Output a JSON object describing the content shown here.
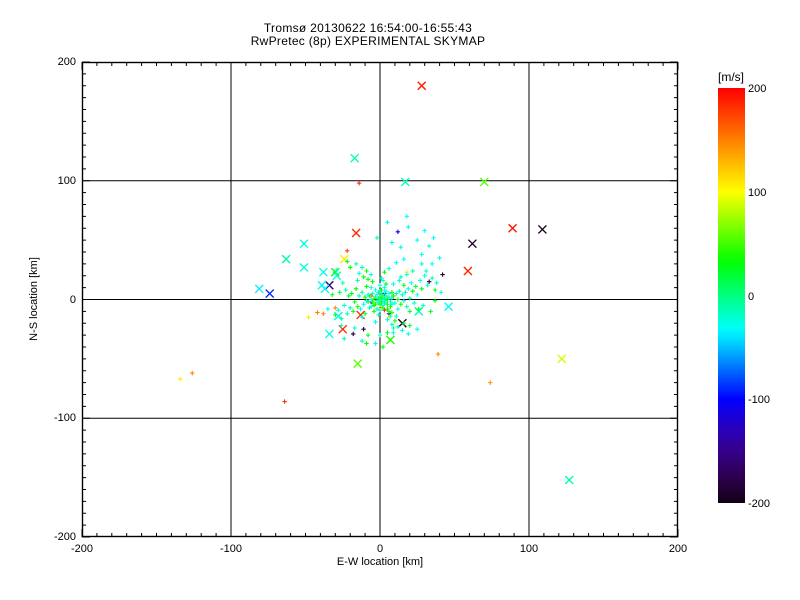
{
  "title": {
    "line1": "Tromsø 20130622 16:54:00-16:55:43",
    "line2": "RwPretec (8p) EXPERIMENTAL SKYMAP"
  },
  "axes": {
    "xlabel": "E-W location [km]",
    "ylabel": "N-S location [km]",
    "xmin": -200,
    "xmax": 200,
    "ymin": -200,
    "ymax": 200,
    "xticks": [
      -200,
      -100,
      0,
      100,
      200
    ],
    "yticks": [
      200,
      100,
      0,
      -100,
      -200
    ],
    "minor_step": 10,
    "grid_lines": [
      -100,
      0,
      100
    ],
    "frame_color": "#000000"
  },
  "colorbar": {
    "unit": "[m/s]",
    "min": -200,
    "max": 200,
    "ticks": [
      200,
      100,
      0,
      -100,
      -200
    ],
    "scale_colors": {
      "200": "#ff0000",
      "100": "#ffff00",
      "0": "#00ff80",
      "-100": "#0000ff",
      "-200": "#000000"
    }
  },
  "chart_data": {
    "type": "scatter",
    "title": "RwPretec (8p) EXPERIMENTAL SKYMAP",
    "xlabel": "E-W location [km]",
    "ylabel": "N-S location [km]",
    "xlim": [
      -200,
      200
    ],
    "ylim": [
      -200,
      200
    ],
    "value_unit": "m/s",
    "value_range": [
      -200,
      200
    ],
    "colormap": "rainbow: +200 red, +100 yellow, 0 spring-green, -100 blue, -200 black",
    "marker_types": {
      "x": "large cross marker",
      "+": "small plus marker"
    },
    "points": [
      [
        28,
        180,
        190,
        "x"
      ],
      [
        -17,
        119,
        -12,
        "x"
      ],
      [
        17,
        99,
        -14,
        "x"
      ],
      [
        70,
        99,
        55,
        "x"
      ],
      [
        -14,
        98,
        185,
        "+"
      ],
      [
        89,
        60,
        192,
        "x"
      ],
      [
        109,
        59,
        -195,
        "x"
      ],
      [
        62,
        47,
        -190,
        "x"
      ],
      [
        59,
        24,
        186,
        "x"
      ],
      [
        42,
        21,
        -186,
        "+"
      ],
      [
        33,
        15,
        -182,
        "+"
      ],
      [
        46,
        -6,
        -32,
        "x"
      ],
      [
        -51,
        47,
        -24,
        "x"
      ],
      [
        -63,
        34,
        -10,
        "x"
      ],
      [
        -51,
        27,
        -22,
        "x"
      ],
      [
        -81,
        9,
        -38,
        "x"
      ],
      [
        -74,
        5,
        -92,
        "x"
      ],
      [
        -16,
        56,
        184,
        "x"
      ],
      [
        -22,
        41,
        172,
        "+"
      ],
      [
        -24,
        34,
        108,
        "x"
      ],
      [
        -38,
        23,
        -26,
        "x"
      ],
      [
        -29,
        20,
        -30,
        "x"
      ],
      [
        -30,
        23,
        32,
        "x"
      ],
      [
        -34,
        12,
        -162,
        "x"
      ],
      [
        -39,
        12,
        -30,
        "x"
      ],
      [
        -37,
        9,
        -36,
        "x"
      ],
      [
        -34,
        -29,
        -28,
        "x"
      ],
      [
        -25,
        -25,
        184,
        "x"
      ],
      [
        15,
        -20,
        -190,
        "x"
      ],
      [
        26,
        -10,
        -14,
        "x"
      ],
      [
        7,
        -34,
        40,
        "x"
      ],
      [
        -15,
        -54,
        58,
        "x"
      ],
      [
        39,
        -46,
        148,
        "+"
      ],
      [
        74,
        -70,
        142,
        "+"
      ],
      [
        122,
        -50,
        88,
        "x"
      ],
      [
        127,
        -152,
        -12,
        "x"
      ],
      [
        -126,
        -62,
        150,
        "+"
      ],
      [
        -134,
        -67,
        108,
        "+"
      ],
      [
        -64,
        -86,
        184,
        "+"
      ],
      [
        12,
        57,
        -118,
        "+"
      ],
      [
        -11,
        -25,
        -184,
        "+"
      ],
      [
        -42,
        -11,
        148,
        "+"
      ],
      [
        -30,
        -7,
        144,
        "+"
      ],
      [
        -48,
        -15,
        106,
        "+"
      ],
      [
        -28,
        -14,
        -24,
        "x"
      ],
      [
        -13,
        -13,
        184,
        "x"
      ],
      [
        -18,
        -29,
        -186,
        "+"
      ],
      [
        6,
        -12,
        -156,
        "+"
      ],
      [
        3,
        5,
        -112,
        "+"
      ],
      [
        -6,
        -2,
        -122,
        "+"
      ],
      [
        -6,
        3,
        182,
        "+"
      ],
      [
        3,
        -9,
        178,
        "+"
      ],
      [
        18,
        23,
        104,
        "+"
      ],
      [
        1,
        -6,
        100,
        "+"
      ],
      [
        8,
        2,
        108,
        "+"
      ],
      [
        -4,
        -3,
        102,
        "+"
      ],
      [
        6,
        -15,
        104,
        "+"
      ],
      [
        37,
        -1,
        28,
        "+"
      ],
      [
        5,
        65,
        -30,
        "+"
      ],
      [
        18,
        70,
        -34,
        "+"
      ],
      [
        19,
        61,
        -28,
        "+"
      ],
      [
        30,
        58,
        -32,
        "+"
      ],
      [
        25,
        50,
        -30,
        "+"
      ],
      [
        33,
        45,
        -26,
        "+"
      ],
      [
        36,
        52,
        -30,
        "+"
      ],
      [
        8,
        48,
        -22,
        "+"
      ],
      [
        -2,
        52,
        -18,
        "+"
      ],
      [
        14,
        44,
        -24,
        "+"
      ],
      [
        28,
        38,
        -28,
        "+"
      ],
      [
        35,
        30,
        -30,
        "+"
      ],
      [
        40,
        35,
        -26,
        "+"
      ],
      [
        31,
        24,
        -22,
        "+"
      ],
      [
        38,
        14,
        -20,
        "+"
      ],
      [
        41,
        6,
        -24,
        "+"
      ],
      [
        0,
        0,
        -8,
        "+"
      ],
      [
        1,
        1,
        30,
        "+"
      ],
      [
        -1,
        1,
        -12,
        "+"
      ],
      [
        2,
        0,
        -20,
        "+"
      ],
      [
        0,
        2,
        45,
        "+"
      ],
      [
        -2,
        -1,
        -10,
        "+"
      ],
      [
        1,
        -2,
        25,
        "+"
      ],
      [
        -1,
        -3,
        -25,
        "+"
      ],
      [
        3,
        1,
        -8,
        "+"
      ],
      [
        2,
        3,
        38,
        "+"
      ],
      [
        -3,
        2,
        -15,
        "+"
      ],
      [
        0,
        -4,
        20,
        "+"
      ],
      [
        4,
        -1,
        -28,
        "+"
      ],
      [
        -4,
        1,
        50,
        "+"
      ],
      [
        3,
        -3,
        -12,
        "+"
      ],
      [
        -2,
        4,
        -22,
        "+"
      ],
      [
        5,
        0,
        35,
        "+"
      ],
      [
        1,
        4,
        -18,
        "+"
      ],
      [
        -5,
        -2,
        28,
        "+"
      ],
      [
        4,
        3,
        -10,
        "+"
      ],
      [
        2,
        -5,
        -30,
        "+"
      ],
      [
        -3,
        -4,
        42,
        "+"
      ],
      [
        6,
        2,
        -14,
        "+"
      ],
      [
        -6,
        0,
        -26,
        "+"
      ],
      [
        5,
        -4,
        22,
        "+"
      ],
      [
        -1,
        6,
        -8,
        "+"
      ],
      [
        3,
        6,
        -35,
        "+"
      ],
      [
        -4,
        -5,
        30,
        "+"
      ],
      [
        7,
        -2,
        -18,
        "+"
      ],
      [
        0,
        7,
        -12,
        "+"
      ],
      [
        -7,
        3,
        48,
        "+"
      ],
      [
        6,
        5,
        -25,
        "+"
      ],
      [
        2,
        -7,
        36,
        "+"
      ],
      [
        -5,
        5,
        -15,
        "+"
      ],
      [
        8,
        1,
        -30,
        "+"
      ],
      [
        -8,
        -2,
        25,
        "+"
      ],
      [
        4,
        7,
        -20,
        "+"
      ],
      [
        -2,
        -8,
        -10,
        "+"
      ],
      [
        7,
        -6,
        40,
        "+"
      ],
      [
        -6,
        -6,
        -28,
        "+"
      ],
      [
        1,
        8,
        32,
        "+"
      ],
      [
        8,
        -4,
        -16,
        "+"
      ],
      [
        -8,
        4,
        -24,
        "+"
      ],
      [
        5,
        -8,
        28,
        "+"
      ],
      [
        -3,
        8,
        -32,
        "+"
      ],
      [
        8,
        6,
        20,
        "+"
      ],
      [
        -7,
        -7,
        -14,
        "+"
      ],
      [
        0,
        -9,
        -26,
        "+"
      ],
      [
        9,
        3,
        34,
        "+"
      ],
      [
        -9,
        -1,
        -18,
        "+"
      ],
      [
        10,
        -3,
        -22,
        "+"
      ],
      [
        -10,
        2,
        30,
        "+"
      ],
      [
        3,
        10,
        -28,
        "+"
      ],
      [
        -4,
        -10,
        38,
        "+"
      ],
      [
        11,
        5,
        -12,
        "+"
      ],
      [
        -11,
        -4,
        -30,
        "+"
      ],
      [
        6,
        -10,
        24,
        "+"
      ],
      [
        -6,
        10,
        -18,
        "+"
      ],
      [
        12,
        0,
        28,
        "+"
      ],
      [
        0,
        12,
        -24,
        "+"
      ],
      [
        -12,
        6,
        -10,
        "+"
      ],
      [
        8,
        -11,
        44,
        "+"
      ],
      [
        12,
        -8,
        -26,
        "+"
      ],
      [
        -9,
        11,
        32,
        "+"
      ],
      [
        13,
        7,
        -16,
        "+"
      ],
      [
        -13,
        -8,
        -28,
        "+"
      ],
      [
        4,
        13,
        26,
        "+"
      ],
      [
        -1,
        -13,
        -20,
        "+"
      ],
      [
        14,
        -4,
        36,
        "+"
      ],
      [
        -14,
        3,
        -12,
        "+"
      ],
      [
        9,
        13,
        -30,
        "+"
      ],
      [
        -10,
        -12,
        22,
        "+"
      ],
      [
        15,
        4,
        -18,
        "+"
      ],
      [
        -15,
        -6,
        40,
        "+"
      ],
      [
        7,
        -14,
        -24,
        "+"
      ],
      [
        -5,
        15,
        28,
        "+"
      ],
      [
        16,
        -1,
        -14,
        "+"
      ],
      [
        2,
        16,
        -28,
        "+"
      ],
      [
        -16,
        9,
        34,
        "+"
      ],
      [
        11,
        -14,
        -20,
        "+"
      ],
      [
        16,
        12,
        24,
        "+"
      ],
      [
        -12,
        -15,
        -32,
        "+"
      ],
      [
        17,
        6,
        -10,
        "+"
      ],
      [
        -17,
        -2,
        26,
        "+"
      ],
      [
        5,
        -17,
        -26,
        "+"
      ],
      [
        -8,
        17,
        38,
        "+"
      ],
      [
        18,
        -6,
        -18,
        "+"
      ],
      [
        13,
        16,
        -24,
        "+"
      ],
      [
        -18,
        -10,
        30,
        "+"
      ],
      [
        1,
        18,
        -14,
        "+"
      ],
      [
        19,
        9,
        -28,
        "+"
      ],
      [
        -19,
        5,
        22,
        "+"
      ],
      [
        10,
        -18,
        36,
        "+"
      ],
      [
        -15,
        16,
        -20,
        "+"
      ],
      [
        20,
        1,
        -12,
        "+"
      ],
      [
        -3,
        -19,
        -30,
        "+"
      ],
      [
        20,
        -10,
        28,
        "+"
      ],
      [
        -20,
        -7,
        -22,
        "+"
      ],
      [
        14,
        19,
        -16,
        "+"
      ],
      [
        -11,
        19,
        32,
        "+"
      ],
      [
        21,
        14,
        -26,
        "+"
      ],
      [
        -21,
        3,
        24,
        "+"
      ],
      [
        8,
        -21,
        -18,
        "+"
      ],
      [
        -6,
        21,
        -30,
        "+"
      ],
      [
        22,
        7,
        34,
        "+"
      ],
      [
        -22,
        -12,
        -14,
        "+"
      ],
      [
        16,
        -20,
        26,
        "+"
      ],
      [
        -14,
        22,
        -28,
        "+"
      ],
      [
        23,
        -3,
        -20,
        "+"
      ],
      [
        3,
        23,
        30,
        "+"
      ],
      [
        -23,
        8,
        -12,
        "+"
      ],
      [
        18,
        21,
        -32,
        "+"
      ],
      [
        24,
        11,
        22,
        "+"
      ],
      [
        -24,
        -5,
        -24,
        "+"
      ],
      [
        12,
        -23,
        -16,
        "+"
      ],
      [
        -9,
        24,
        36,
        "+"
      ],
      [
        25,
        4,
        -28,
        "+"
      ],
      [
        -25,
        14,
        -10,
        "+"
      ],
      [
        20,
        -22,
        24,
        "+"
      ],
      [
        -17,
        -24,
        -26,
        "+"
      ],
      [
        26,
        -8,
        32,
        "+"
      ],
      [
        6,
        26,
        -20,
        "+"
      ],
      [
        -26,
        -16,
        -14,
        "+"
      ],
      [
        27,
        16,
        -30,
        "+"
      ],
      [
        -27,
        6,
        20,
        "+"
      ],
      [
        15,
        -26,
        -22,
        "+"
      ],
      [
        -12,
        27,
        -16,
        "+"
      ],
      [
        28,
        9,
        26,
        "+"
      ],
      [
        -28,
        -9,
        -28,
        "+"
      ],
      [
        22,
        24,
        -12,
        "+"
      ],
      [
        29,
        -5,
        -24,
        "+"
      ],
      [
        -20,
        27,
        30,
        "+"
      ],
      [
        9,
        -28,
        -18,
        "+"
      ],
      [
        30,
        20,
        -26,
        "+"
      ],
      [
        -30,
        -13,
        22,
        "+"
      ],
      [
        25,
        -25,
        -30,
        "+"
      ],
      [
        -16,
        30,
        -14,
        "+"
      ],
      [
        32,
        12,
        -20,
        "+"
      ],
      [
        -32,
        4,
        28,
        "+"
      ],
      [
        19,
        -29,
        -24,
        "+"
      ],
      [
        11,
        31,
        -28,
        "+"
      ],
      [
        34,
        -10,
        24,
        "+"
      ],
      [
        -26,
        -22,
        -16,
        "+"
      ],
      [
        28,
        30,
        -22,
        "+"
      ],
      [
        -22,
        32,
        26,
        "+"
      ],
      [
        35,
        18,
        -12,
        "+"
      ],
      [
        -35,
        -8,
        -26,
        "+"
      ],
      [
        16,
        34,
        -30,
        "+"
      ],
      [
        37,
        8,
        22,
        "+"
      ],
      [
        -29,
        25,
        -18,
        "+"
      ],
      [
        -38,
        -12,
        150,
        "+"
      ],
      [
        -3,
        -37,
        -24,
        "+"
      ],
      [
        -9,
        -37,
        34,
        "+"
      ],
      [
        -24,
        -33,
        -20,
        "+"
      ],
      [
        -8,
        -30,
        28,
        "+"
      ],
      [
        0,
        -30,
        -16,
        "+"
      ],
      [
        5,
        -28,
        24,
        "+"
      ],
      [
        -12,
        -35,
        -22,
        "+"
      ],
      [
        2,
        -40,
        30,
        "+"
      ],
      [
        9,
        -24,
        -14,
        "+"
      ]
    ]
  }
}
